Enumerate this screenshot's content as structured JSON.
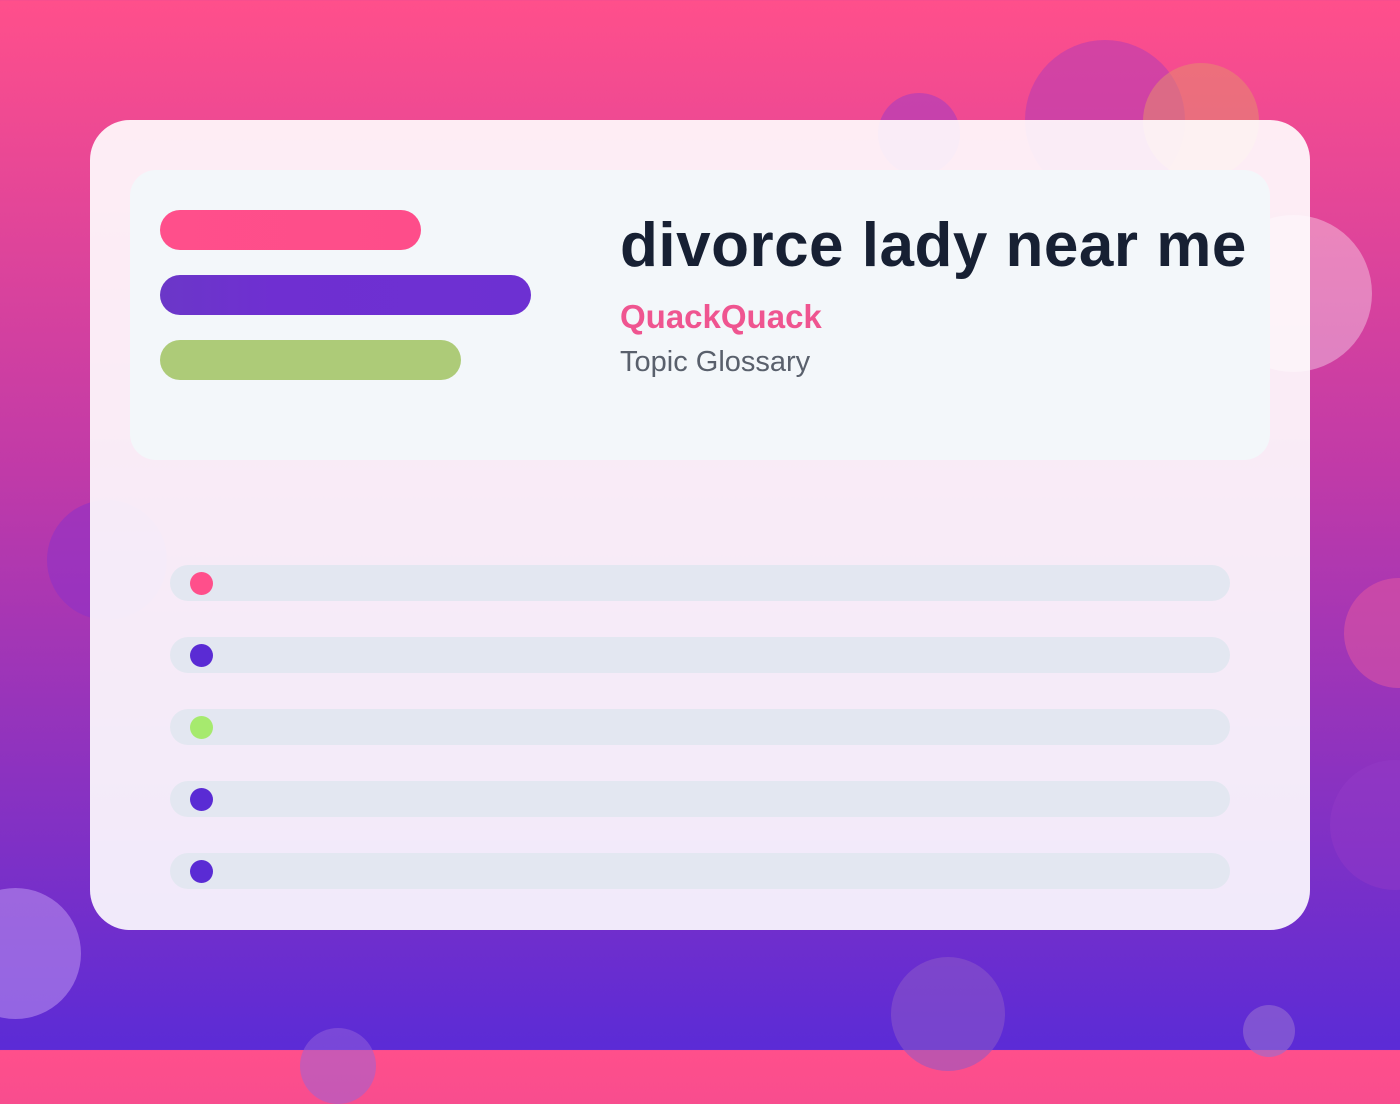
{
  "title": "divorce lady near me",
  "brand": "QuackQuack",
  "subtitle": "Topic Glossary",
  "colors": {
    "background_top": "#ff4f8b",
    "background_bottom": "#5b2bd6",
    "accent_pink": "#ff4f8b",
    "accent_purple": "#6d30d2",
    "accent_green": "#adcb78",
    "title_text": "#172033",
    "brand_text": "#ef5590",
    "subtitle_text": "#59606c",
    "row_background": "#e3e7f1"
  },
  "list_rows": [
    {
      "dot_color": "#ff4f8b"
    },
    {
      "dot_color": "#5a2bd4"
    },
    {
      "dot_color": "#a6ea6e"
    },
    {
      "dot_color": "#5a2bd4"
    },
    {
      "dot_color": "#5a2bd4"
    }
  ]
}
